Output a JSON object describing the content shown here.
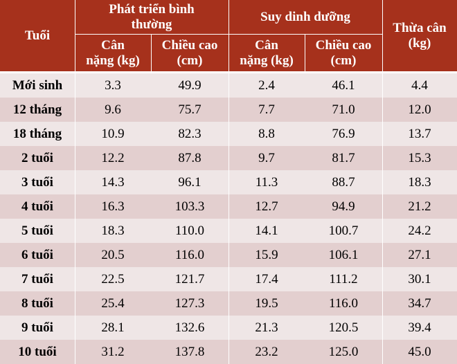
{
  "header": {
    "age": "Tuổi",
    "normal_group": "Phát triển bình thường",
    "malnourished_group": "Suy dinh dưỡng",
    "overweight": "Thừa cân (kg)",
    "weight": "Cân nặng (kg)",
    "height": "Chiều cao (cm)"
  },
  "rows": [
    {
      "age": "Mới sinh",
      "normal_weight": "3.3",
      "normal_height": "49.9",
      "mal_weight": "2.4",
      "mal_height": "46.1",
      "overweight": "4.4"
    },
    {
      "age": "12 tháng",
      "normal_weight": "9.6",
      "normal_height": "75.7",
      "mal_weight": "7.7",
      "mal_height": "71.0",
      "overweight": "12.0"
    },
    {
      "age": "18 tháng",
      "normal_weight": "10.9",
      "normal_height": "82.3",
      "mal_weight": "8.8",
      "mal_height": "76.9",
      "overweight": "13.7"
    },
    {
      "age": "2 tuổi",
      "normal_weight": "12.2",
      "normal_height": "87.8",
      "mal_weight": "9.7",
      "mal_height": "81.7",
      "overweight": "15.3"
    },
    {
      "age": "3 tuổi",
      "normal_weight": "14.3",
      "normal_height": "96.1",
      "mal_weight": "11.3",
      "mal_height": "88.7",
      "overweight": "18.3"
    },
    {
      "age": "4 tuổi",
      "normal_weight": "16.3",
      "normal_height": "103.3",
      "mal_weight": "12.7",
      "mal_height": "94.9",
      "overweight": "21.2"
    },
    {
      "age": "5 tuổi",
      "normal_weight": "18.3",
      "normal_height": "110.0",
      "mal_weight": "14.1",
      "mal_height": "100.7",
      "overweight": "24.2"
    },
    {
      "age": "6 tuổi",
      "normal_weight": "20.5",
      "normal_height": "116.0",
      "mal_weight": "15.9",
      "mal_height": "106.1",
      "overweight": "27.1"
    },
    {
      "age": "7 tuổi",
      "normal_weight": "22.5",
      "normal_height": "121.7",
      "mal_weight": "17.4",
      "mal_height": "111.2",
      "overweight": "30.1"
    },
    {
      "age": "8 tuổi",
      "normal_weight": "25.4",
      "normal_height": "127.3",
      "mal_weight": "19.5",
      "mal_height": "116.0",
      "overweight": "34.7"
    },
    {
      "age": "9 tuổi",
      "normal_weight": "28.1",
      "normal_height": "132.6",
      "mal_weight": "21.3",
      "mal_height": "120.5",
      "overweight": "39.4"
    },
    {
      "age": "10 tuổi",
      "normal_weight": "31.2",
      "normal_height": "137.8",
      "mal_weight": "23.2",
      "mal_height": "125.0",
      "overweight": "45.0"
    }
  ]
}
